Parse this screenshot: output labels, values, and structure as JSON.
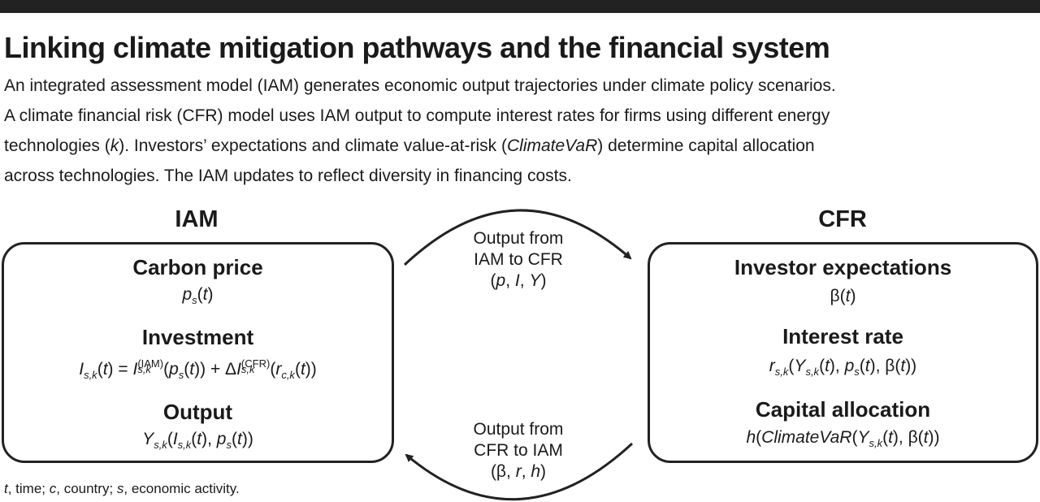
{
  "header": {
    "title": "Linking climate mitigation pathways and the financial system",
    "description_lines": [
      "An integrated assessment model (IAM) generates economic output trajectories under climate policy scenarios.",
      "A climate financial risk (CFR) model uses IAM output to compute interest rates for firms using different energy",
      [
        "technologies (",
        "k",
        "). Investors’ expectations and climate value-at-risk (",
        "ClimateVaR",
        ") determine capital allocation"
      ],
      "across technologies. The IAM updates to reflect diversity in financing costs."
    ]
  },
  "iam": {
    "heading": "IAM",
    "carbon_price": {
      "label": "Carbon price",
      "formula": "p_s(t)"
    },
    "investment": {
      "label": "Investment",
      "formula": "I_s,k(t) = I_s,k^(IAM)(p_s(t)) + ΔI_s,k^(CFR)(r_c,k(t))"
    },
    "output": {
      "label": "Output",
      "formula": "Y_s,k(I_s,k(t), p_s(t))"
    }
  },
  "cfr": {
    "heading": "CFR",
    "investor_expectations": {
      "label": "Investor expectations",
      "formula": "β(t)"
    },
    "interest_rate": {
      "label": "Interest rate",
      "formula": "r_s,k(Y_s,k(t), p_s(t), β(t))"
    },
    "capital_allocation": {
      "label": "Capital allocation",
      "formula": "h(ClimateVaR(Y_s,k(t), β(t))"
    }
  },
  "flows": {
    "iam_to_cfr": {
      "line1": "Output from",
      "line2": "IAM to CFR",
      "vars": "(p, I, Y)"
    },
    "cfr_to_iam": {
      "line1": "Output from",
      "line2": "CFR to IAM",
      "vars": "(β, r, h)"
    }
  },
  "footnote": "t, time; c, country; s, economic activity."
}
